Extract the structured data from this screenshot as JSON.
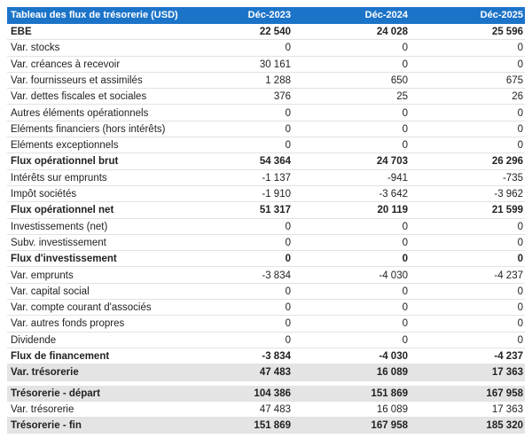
{
  "table": {
    "header": [
      "Tableau des flux de trésorerie (USD)",
      "Déc-2023",
      "Déc-2024",
      "Déc-2025"
    ],
    "rows": [
      [
        "EBE",
        "22 540",
        "24 028",
        "25 596"
      ],
      [
        "Var. stocks",
        "0",
        "0",
        "0"
      ],
      [
        "Var. créances à recevoir",
        "30 161",
        "0",
        "0"
      ],
      [
        "Var. fournisseurs et assimilés",
        "1 288",
        "650",
        "675"
      ],
      [
        "Var. dettes fiscales et sociales",
        "376",
        "25",
        "26"
      ],
      [
        "Autres éléments opérationnels",
        "0",
        "0",
        "0"
      ],
      [
        "Eléments financiers (hors intérêts)",
        "0",
        "0",
        "0"
      ],
      [
        "Eléments exceptionnels",
        "0",
        "0",
        "0"
      ],
      [
        "Flux opérationnel brut",
        "54 364",
        "24 703",
        "26 296"
      ],
      [
        "Intérêts sur emprunts",
        "-1 137",
        "-941",
        "-735"
      ],
      [
        "Impôt sociétés",
        "-1 910",
        "-3 642",
        "-3 962"
      ],
      [
        "Flux opérationnel net",
        "51 317",
        "20 119",
        "21 599"
      ],
      [
        "Investissements (net)",
        "0",
        "0",
        "0"
      ],
      [
        "Subv. investissement",
        "0",
        "0",
        "0"
      ],
      [
        "Flux d'investissement",
        "0",
        "0",
        "0"
      ],
      [
        "Var. emprunts",
        "-3 834",
        "-4 030",
        "-4 237"
      ],
      [
        "Var. capital social",
        "0",
        "0",
        "0"
      ],
      [
        "Var. compte courant d'associés",
        "0",
        "0",
        "0"
      ],
      [
        "Var. autres fonds propres",
        "0",
        "0",
        "0"
      ],
      [
        "Dividende",
        "0",
        "0",
        "0"
      ],
      [
        "Flux de financement",
        "-3 834",
        "-4 030",
        "-4 237"
      ],
      [
        "Var. trésorerie",
        "47 483",
        "16 089",
        "17 363"
      ],
      [
        "Trésorerie - départ",
        "104 386",
        "151 869",
        "167 958"
      ],
      [
        "Var. trésorerie",
        "47 483",
        "16 089",
        "17 363"
      ],
      [
        "Trésorerie - fin",
        "151 869",
        "167 958",
        "185 320"
      ]
    ]
  }
}
